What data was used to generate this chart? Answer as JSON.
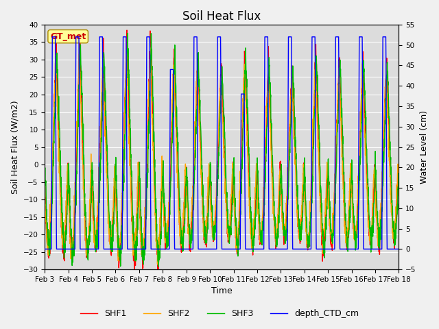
{
  "title": "Soil Heat Flux",
  "xlabel": "Time",
  "ylabel_left": "Soil Heat Flux (W/m2)",
  "ylabel_right": "Water Level (cm)",
  "ylim_left": [
    -30,
    40
  ],
  "ylim_right": [
    -5,
    55
  ],
  "yticks_left": [
    -30,
    -25,
    -20,
    -15,
    -10,
    -5,
    0,
    5,
    10,
    15,
    20,
    25,
    30,
    35,
    40
  ],
  "yticks_right": [
    -5,
    0,
    5,
    10,
    15,
    20,
    25,
    30,
    35,
    40,
    45,
    50,
    55
  ],
  "colors": {
    "SHF1": "#ff0000",
    "SHF2": "#ffa500",
    "SHF3": "#00bb00",
    "depth_CTD_cm": "#0000ff"
  },
  "legend_labels": [
    "SHF1",
    "SHF2",
    "SHF3",
    "depth_CTD_cm"
  ],
  "annotation_text": "GT_met",
  "annotation_color": "#cc0000",
  "annotation_bg": "#ffff99",
  "annotation_edge": "#aa8800",
  "background_color": "#dcdcdc",
  "fig_background": "#f0f0f0",
  "grid_color": "#ffffff",
  "xticklabels": [
    "Feb 3",
    "Feb 4",
    "Feb 5",
    "Feb 6",
    "Feb 7",
    "Feb 8",
    "Feb 9",
    "Feb 10",
    "Feb 11",
    "Feb 12",
    "Feb 13",
    "Feb 14",
    "Feb 15",
    "Feb 16",
    "Feb 17",
    "Feb 18"
  ],
  "title_fontsize": 12,
  "label_fontsize": 9,
  "tick_fontsize": 7.5,
  "legend_fontsize": 9,
  "linewidth": 1.0
}
